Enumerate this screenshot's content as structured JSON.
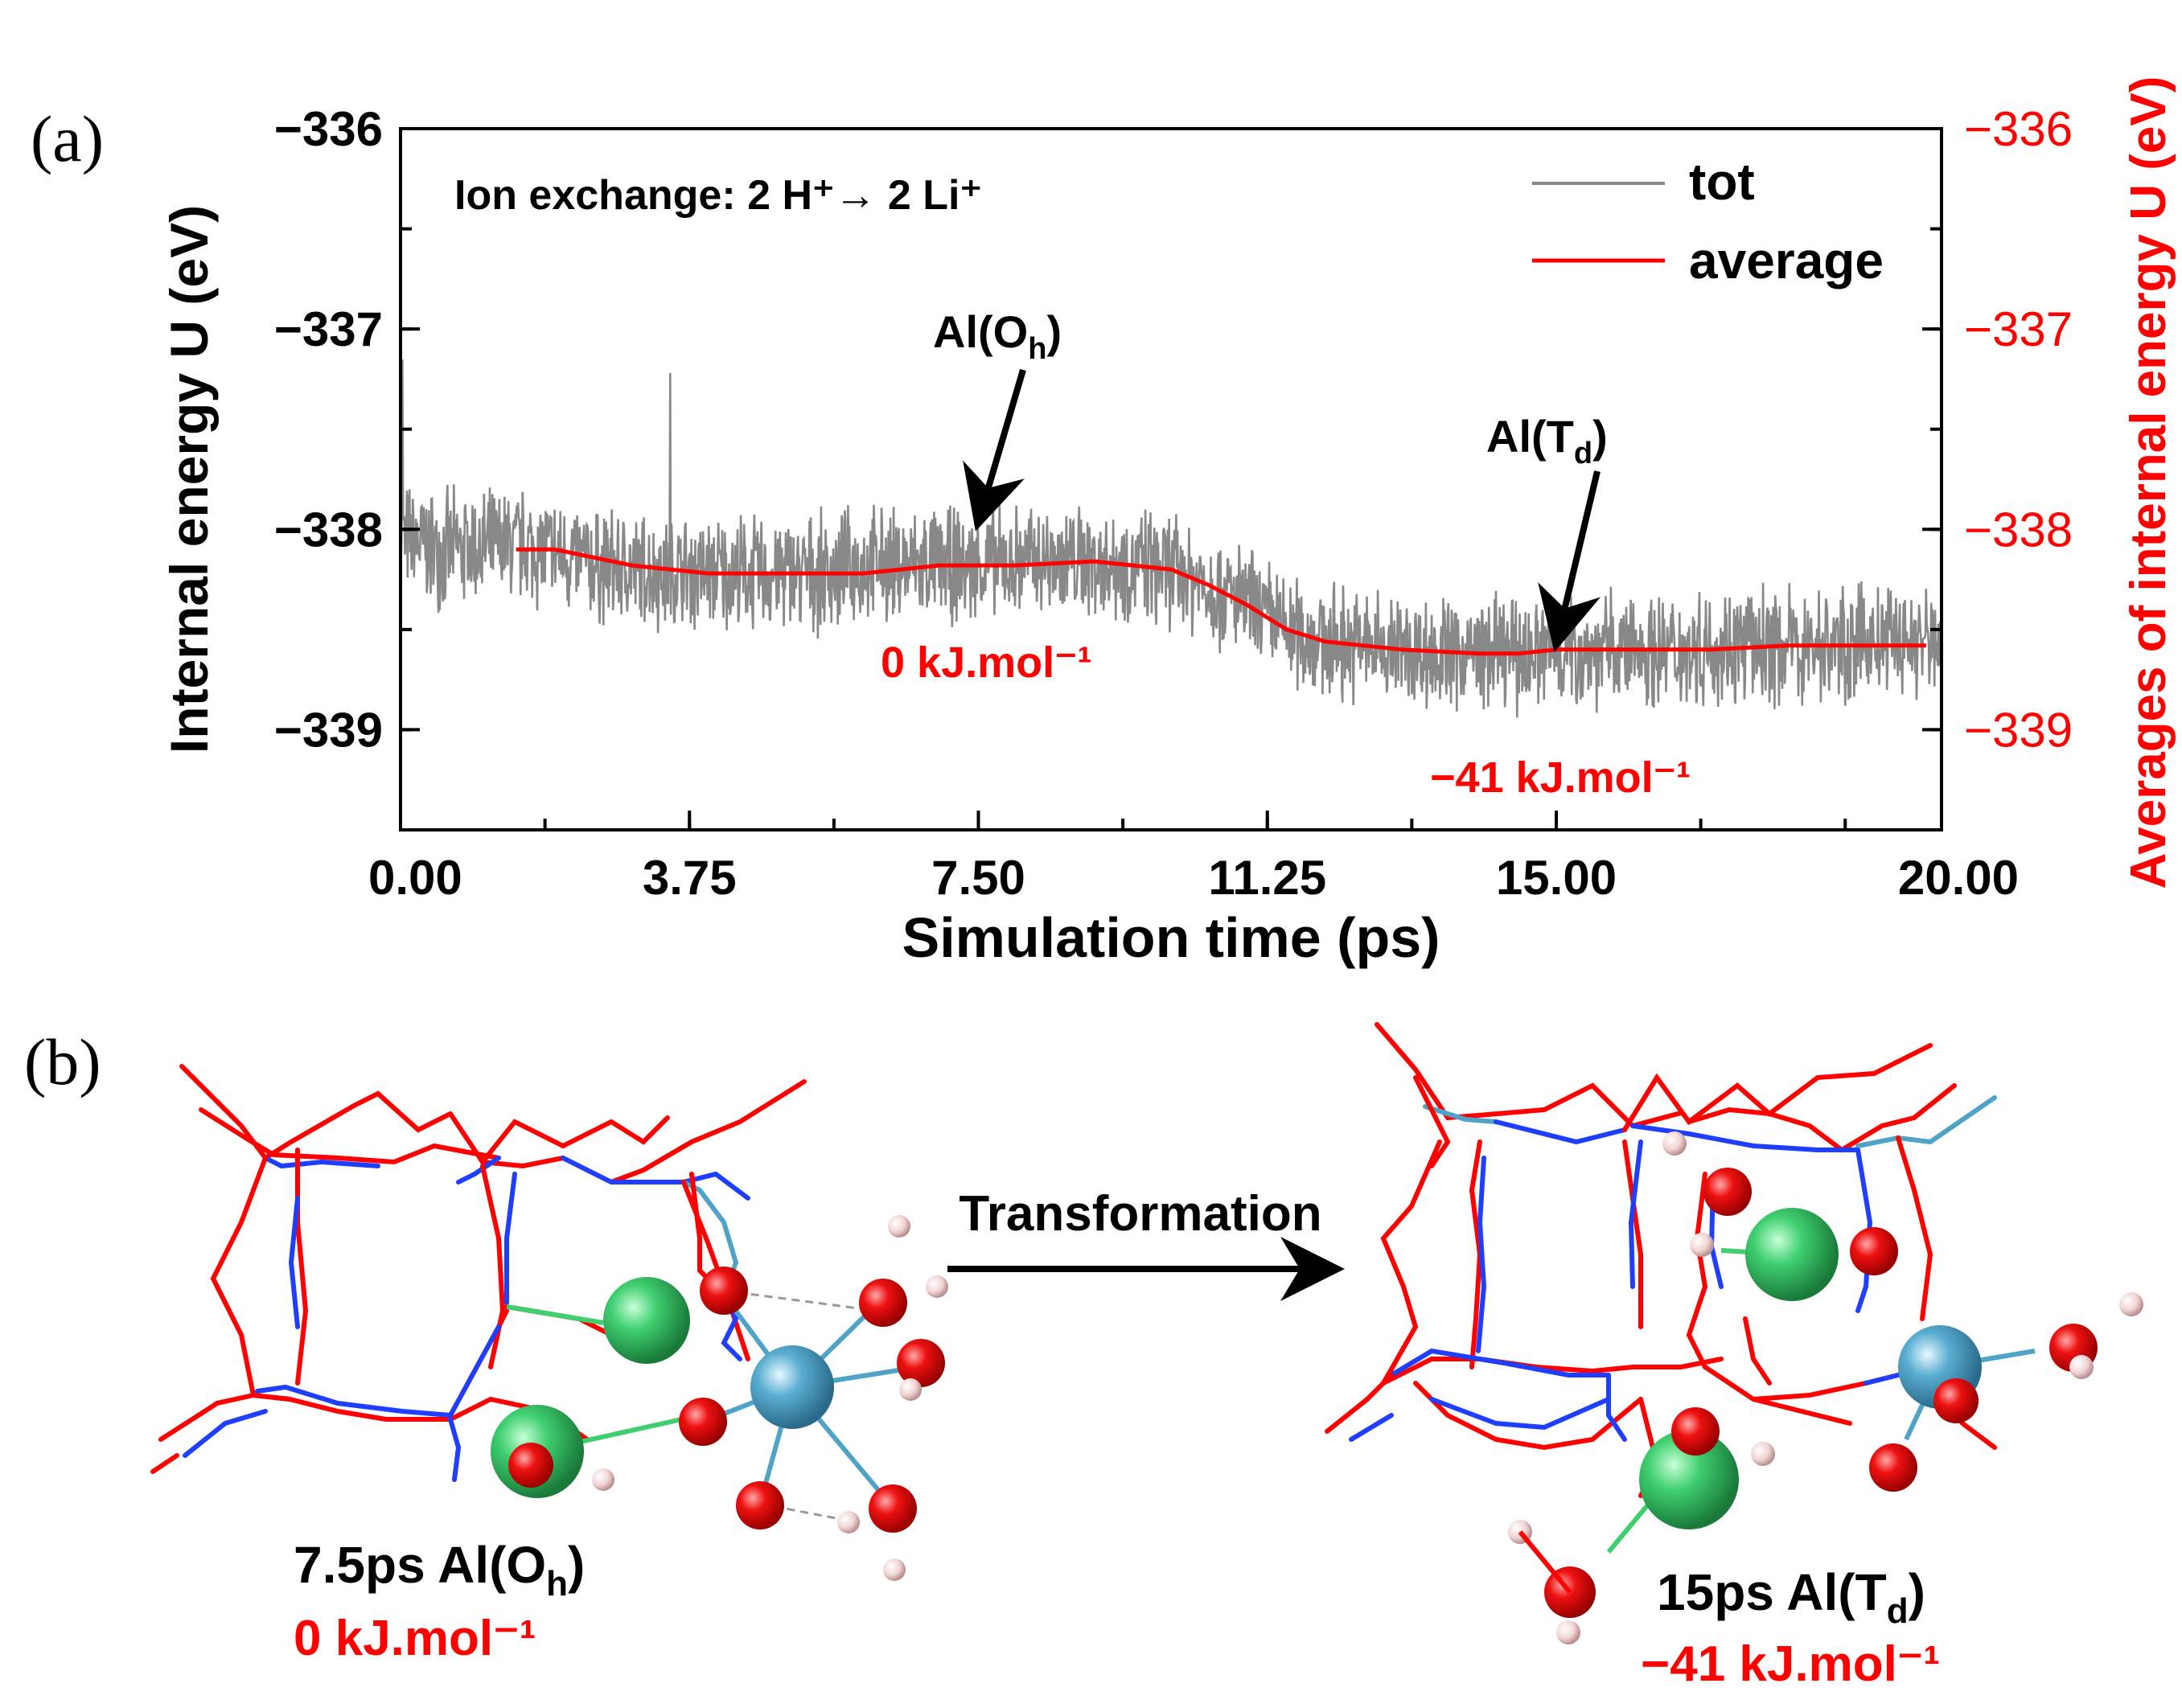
{
  "panels": {
    "a_label": "(a)",
    "b_label": "(b)"
  },
  "chart_data": {
    "type": "line",
    "xlabel": "Simulation time (ps)",
    "ylabel": "Internal energy U (eV)",
    "ylabel_right": "Averages of internal energy U (eV)",
    "xlim": [
      0,
      20
    ],
    "ylim": [
      -339.5,
      -336
    ],
    "x_ticks": [
      "0.00",
      "3.75",
      "7.50",
      "11.25",
      "15.00",
      "20.00"
    ],
    "x_tick_values": [
      0,
      3.75,
      7.5,
      11.25,
      15,
      20
    ],
    "y_ticks": [
      "−336",
      "−337",
      "−338",
      "−339"
    ],
    "y_tick_values": [
      -336,
      -337,
      -338,
      -339
    ],
    "y_ticks_right": [
      "−336",
      "−337",
      "−338",
      "−339"
    ],
    "legend_position": "top-right",
    "series": [
      {
        "name": "tot",
        "color": "#888888",
        "x": [
          0,
          0.5,
          1,
          1.5,
          2,
          2.5,
          3,
          3.5,
          4,
          4.5,
          5,
          5.5,
          6,
          6.5,
          7,
          7.5,
          8,
          8.5,
          9,
          9.5,
          10,
          10.5,
          11,
          11.5,
          12,
          12.5,
          13,
          13.5,
          14,
          14.5,
          15,
          15.5,
          16,
          16.5,
          17,
          17.5,
          18,
          18.5,
          19,
          19.5,
          20
        ],
        "values": [
          -338.05,
          -338.1,
          -338.1,
          -338.08,
          -338.12,
          -338.18,
          -338.2,
          -338.22,
          -338.22,
          -338.22,
          -338.22,
          -338.22,
          -338.18,
          -338.18,
          -338.18,
          -338.18,
          -338.16,
          -338.16,
          -338.16,
          -338.18,
          -338.2,
          -338.28,
          -338.38,
          -338.5,
          -338.56,
          -338.58,
          -338.6,
          -338.62,
          -338.62,
          -338.62,
          -338.6,
          -338.6,
          -338.6,
          -338.6,
          -338.58,
          -338.58,
          -338.58,
          -338.58,
          -338.56,
          -338.56,
          -338.56
        ],
        "noise_amplitude": 0.28
      },
      {
        "name": "average",
        "color": "#ff0000",
        "x": [
          1.5,
          2,
          3,
          4,
          5,
          6,
          7,
          8,
          9,
          10,
          10.5,
          11,
          11.5,
          12,
          13,
          14,
          14.5,
          15,
          16,
          17,
          18,
          19,
          19.8
        ],
        "values": [
          -338.1,
          -338.1,
          -338.18,
          -338.22,
          -338.22,
          -338.22,
          -338.18,
          -338.18,
          -338.16,
          -338.2,
          -338.28,
          -338.38,
          -338.5,
          -338.56,
          -338.6,
          -338.62,
          -338.62,
          -338.6,
          -338.6,
          -338.6,
          -338.58,
          -338.58,
          -338.58
        ]
      }
    ],
    "annotations": [
      {
        "text": "Ion exchange: 2 H⁺→ 2 Li⁺"
      },
      {
        "text_main": "Al(O",
        "text_sub": "h",
        "text_end": ")",
        "x": 7.5,
        "y": -338.0
      },
      {
        "text_main": "Al(T",
        "text_sub": "d",
        "text_end": ")",
        "x": 15.0,
        "y": -338.6
      },
      {
        "text": "0 kJ.mol⁻¹",
        "color": "#ff0000"
      },
      {
        "text": "−41 kJ.mol⁻¹",
        "color": "#ff0000"
      }
    ]
  },
  "structures": {
    "left": {
      "caption_main": "7.5ps  Al(O",
      "caption_sub": "h",
      "caption_end": ")",
      "energy": "0 kJ.mol⁻¹"
    },
    "right": {
      "caption_main": "15ps  Al(T",
      "caption_sub": "d",
      "caption_end": ")",
      "energy": "−41 kJ.mol⁻¹"
    },
    "transformation_label": "Transformation"
  },
  "colors": {
    "oxygen": "#ff0000",
    "silicon": "#1f3fff",
    "aluminum": "#4fa3c7",
    "lithium": "#3fcf6f",
    "hydrogen": "#f0d0d0",
    "total_line": "#888888",
    "average_line": "#ff0000"
  }
}
